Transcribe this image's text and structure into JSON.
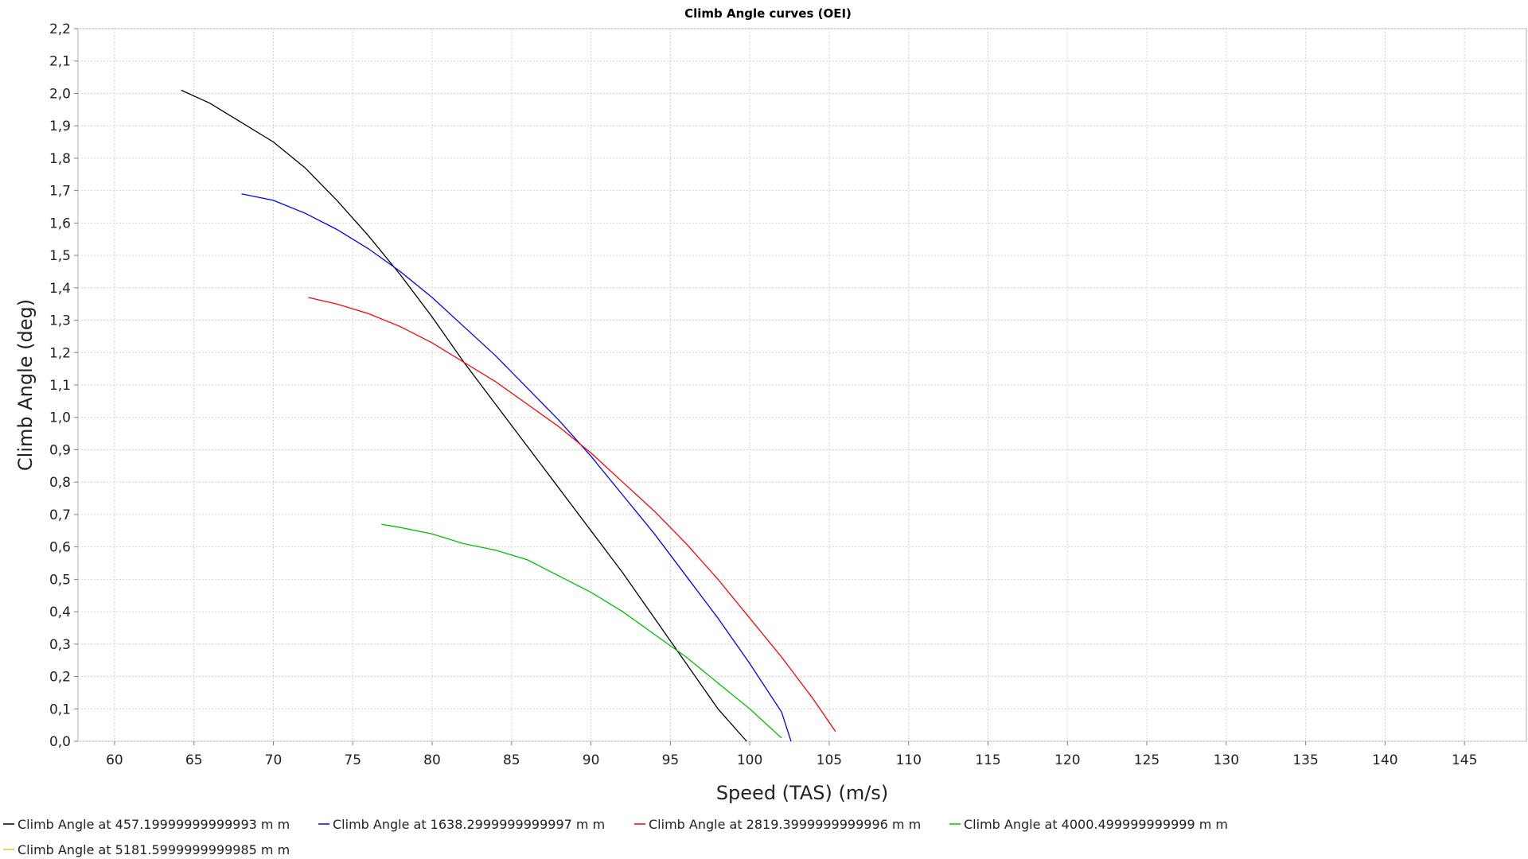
{
  "chart_data": {
    "type": "line",
    "title": "Climb Angle curves (OEI)",
    "xlabel": "Speed (TAS) (m/s)",
    "ylabel": "Climb Angle (deg)",
    "xlim": [
      57.7,
      148.9
    ],
    "ylim": [
      0.0,
      2.2
    ],
    "xticks": [
      60,
      65,
      70,
      75,
      80,
      85,
      90,
      95,
      100,
      105,
      110,
      115,
      120,
      125,
      130,
      135,
      140,
      145
    ],
    "xtick_labels": [
      "60",
      "65",
      "70",
      "75",
      "80",
      "85",
      "90",
      "95",
      "100",
      "105",
      "110",
      "115",
      "120",
      "125",
      "130",
      "135",
      "140",
      "145"
    ],
    "yticks": [
      0.0,
      0.1,
      0.2,
      0.3,
      0.4,
      0.5,
      0.6,
      0.7,
      0.8,
      0.9,
      1.0,
      1.1,
      1.2,
      1.3,
      1.4,
      1.5,
      1.6,
      1.7,
      1.8,
      1.9,
      2.0,
      2.1,
      2.2
    ],
    "ytick_labels": [
      "0,0",
      "0,1",
      "0,2",
      "0,3",
      "0,4",
      "0,5",
      "0,6",
      "0,7",
      "0,8",
      "0,9",
      "1,0",
      "1,1",
      "1,2",
      "1,3",
      "1,4",
      "1,5",
      "1,6",
      "1,7",
      "1,8",
      "1,9",
      "2,0",
      "2,1",
      "2,2"
    ],
    "grid": true,
    "legend_position": "bottom",
    "series": [
      {
        "name": "Climb Angle at 457.19999999999993 m m",
        "color": "#000000",
        "x": [
          64.2,
          66.0,
          68.0,
          70.0,
          72.0,
          74.0,
          76.0,
          78.0,
          80.0,
          82.0,
          84.0,
          86.0,
          88.0,
          90.0,
          92.0,
          94.0,
          96.0,
          98.0,
          99.8
        ],
        "y": [
          2.01,
          1.97,
          1.91,
          1.85,
          1.77,
          1.67,
          1.56,
          1.44,
          1.31,
          1.17,
          1.04,
          0.91,
          0.78,
          0.65,
          0.52,
          0.38,
          0.24,
          0.1,
          0.0
        ]
      },
      {
        "name": "Climb Angle at 1638.2999999999997 m m",
        "color": "#0000ff",
        "x": [
          68.0,
          70.0,
          72.0,
          74.0,
          76.0,
          78.0,
          80.0,
          82.0,
          84.0,
          86.0,
          88.0,
          90.0,
          92.0,
          94.0,
          96.0,
          98.0,
          100.0,
          102.0,
          102.6
        ],
        "y": [
          1.69,
          1.67,
          1.63,
          1.58,
          1.52,
          1.45,
          1.37,
          1.28,
          1.19,
          1.09,
          0.99,
          0.88,
          0.76,
          0.64,
          0.51,
          0.38,
          0.24,
          0.09,
          0.0
        ]
      },
      {
        "name": "Climb Angle at 2819.3999999999996 m m",
        "color": "#ff0000",
        "x": [
          72.2,
          74.0,
          76.0,
          78.0,
          80.0,
          82.0,
          84.0,
          86.0,
          88.0,
          90.0,
          92.0,
          94.0,
          96.0,
          98.0,
          100.0,
          102.0,
          104.0,
          105.4
        ],
        "y": [
          1.37,
          1.35,
          1.32,
          1.28,
          1.23,
          1.17,
          1.11,
          1.04,
          0.97,
          0.89,
          0.8,
          0.71,
          0.61,
          0.5,
          0.38,
          0.26,
          0.13,
          0.03
        ]
      },
      {
        "name": "Climb Angle at 4000.499999999999 m m",
        "color": "#00c000",
        "x": [
          76.8,
          78.0,
          80.0,
          82.0,
          84.0,
          86.0,
          88.0,
          90.0,
          92.0,
          94.0,
          96.0,
          98.0,
          100.0,
          102.0
        ],
        "y": [
          0.67,
          0.66,
          0.64,
          0.61,
          0.59,
          0.56,
          0.51,
          0.46,
          0.4,
          0.33,
          0.26,
          0.18,
          0.1,
          0.01
        ]
      },
      {
        "name": "Climb Angle at 5181.5999999999985 m m",
        "color": "#e6c230",
        "x": [],
        "y": []
      }
    ]
  }
}
